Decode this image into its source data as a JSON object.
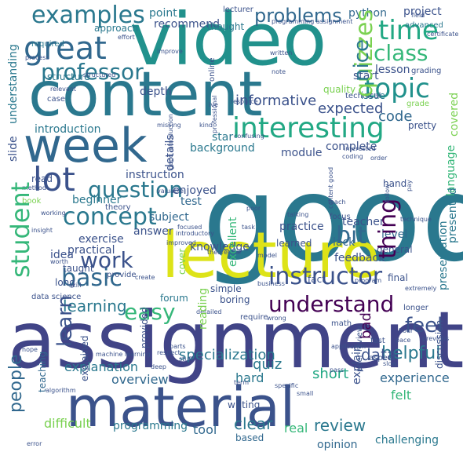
{
  "words": [
    {
      "text": "good",
      "color": "#2a788e",
      "vertical": false
    },
    {
      "text": "assignment",
      "color": "#414487",
      "vertical": false
    },
    {
      "text": "content",
      "color": "#2a788e",
      "vertical": false
    },
    {
      "text": "video",
      "color": "#21918c",
      "vertical": false
    },
    {
      "text": "lecture",
      "color": "#dde318",
      "vertical": false
    },
    {
      "text": "material",
      "color": "#3b528b",
      "vertical": false
    },
    {
      "text": "week",
      "color": "#31688e",
      "vertical": false
    },
    {
      "text": "interesting",
      "color": "#22a884",
      "vertical": false
    },
    {
      "text": "great",
      "color": "#31688e",
      "vertical": false
    },
    {
      "text": "lot",
      "color": "#3b528b",
      "vertical": false
    },
    {
      "text": "examples",
      "color": "#2a788e",
      "vertical": false
    },
    {
      "text": "time",
      "color": "#22a884",
      "vertical": false
    },
    {
      "text": "class",
      "color": "#35b779",
      "vertical": false
    },
    {
      "text": "topic",
      "color": "#21918c",
      "vertical": false
    },
    {
      "text": "professor",
      "color": "#2a788e",
      "vertical": false
    },
    {
      "text": "quizzes",
      "color": "#7ad151",
      "vertical": true
    },
    {
      "text": "nice",
      "color": "#2a788e",
      "vertical": true
    },
    {
      "text": "problems",
      "color": "#31688e",
      "vertical": false
    },
    {
      "text": "instructor",
      "color": "#3b528b",
      "vertical": false
    },
    {
      "text": "question",
      "color": "#2a788e",
      "vertical": false
    },
    {
      "text": "concept",
      "color": "#2a788e",
      "vertical": false
    },
    {
      "text": "basic",
      "color": "#31688e",
      "vertical": false
    },
    {
      "text": "work",
      "color": "#3b528b",
      "vertical": false
    },
    {
      "text": "student",
      "color": "#35b779",
      "vertical": true
    },
    {
      "text": "learning",
      "color": "#2a788e",
      "vertical": false
    },
    {
      "text": "bit",
      "color": "#31688e",
      "vertical": false
    },
    {
      "text": "thing",
      "color": "#440154",
      "vertical": true
    },
    {
      "text": "understand",
      "color": "#440154",
      "vertical": false
    },
    {
      "text": "easy",
      "color": "#35b779",
      "vertical": false
    },
    {
      "text": "learn",
      "color": "#3b528b",
      "vertical": true
    },
    {
      "text": "people",
      "color": "#31688e",
      "vertical": true
    },
    {
      "text": "feel",
      "color": "#3b528b",
      "vertical": false
    },
    {
      "text": "specialization",
      "color": "#2a788e",
      "vertical": false
    },
    {
      "text": "explanation",
      "color": "#2a788e",
      "vertical": false
    },
    {
      "text": "overview",
      "color": "#31688e",
      "vertical": false
    },
    {
      "text": "helpful",
      "color": "#2a788e",
      "vertical": false
    },
    {
      "text": "experience",
      "color": "#31688e",
      "vertical": false
    },
    {
      "text": "difficult",
      "color": "#7ad151",
      "vertical": false
    },
    {
      "text": "programming",
      "color": "#2a788e",
      "vertical": false
    },
    {
      "text": "tool",
      "color": "#31688e",
      "vertical": false
    },
    {
      "text": "clear",
      "color": "#2a788e",
      "vertical": false
    },
    {
      "text": "review",
      "color": "#2a788e",
      "vertical": false
    },
    {
      "text": "real",
      "color": "#35b779",
      "vertical": false
    },
    {
      "text": "opinion",
      "color": "#31688e",
      "vertical": false
    },
    {
      "text": "writing",
      "color": "#3b528b",
      "vertical": false
    },
    {
      "text": "hard",
      "color": "#2a788e",
      "vertical": false
    },
    {
      "text": "based",
      "color": "#31688e",
      "vertical": false
    },
    {
      "text": "felt",
      "color": "#35b779",
      "vertical": false
    },
    {
      "text": "short",
      "color": "#22a884",
      "vertical": false
    },
    {
      "text": "quiz",
      "color": "#2a788e",
      "vertical": false
    },
    {
      "text": "data",
      "color": "#3b528b",
      "vertical": false
    },
    {
      "text": "challenging",
      "color": "#2a788e",
      "vertical": false
    },
    {
      "text": "informative",
      "color": "#3b528b",
      "vertical": false
    },
    {
      "text": "expected",
      "color": "#3b528b",
      "vertical": false
    },
    {
      "text": "code",
      "color": "#31688e",
      "vertical": false
    },
    {
      "text": "introduction",
      "color": "#2a788e",
      "vertical": false
    },
    {
      "text": "module",
      "color": "#3b528b",
      "vertical": false
    },
    {
      "text": "complete",
      "color": "#3b528b",
      "vertical": false
    },
    {
      "text": "background",
      "color": "#2a788e",
      "vertical": false
    },
    {
      "text": "star",
      "color": "#2a788e",
      "vertical": false
    },
    {
      "text": "instruction",
      "color": "#3b528b",
      "vertical": false
    },
    {
      "text": "enjoyed",
      "color": "#3b528b",
      "vertical": false
    },
    {
      "text": "test",
      "color": "#31688e",
      "vertical": false
    },
    {
      "text": "beginner",
      "color": "#2a788e",
      "vertical": false
    },
    {
      "text": "subject",
      "color": "#31688e",
      "vertical": false
    },
    {
      "text": "answer",
      "color": "#3b528b",
      "vertical": false
    },
    {
      "text": "exercise",
      "color": "#3b528b",
      "vertical": false
    },
    {
      "text": "knowledge",
      "color": "#3b528b",
      "vertical": false
    },
    {
      "text": "practice",
      "color": "#3b528b",
      "vertical": false
    },
    {
      "text": "teacher",
      "color": "#3b528b",
      "vertical": false
    },
    {
      "text": "learned",
      "color": "#3b528b",
      "vertical": false
    },
    {
      "text": "lack",
      "color": "#31688e",
      "vertical": false
    },
    {
      "text": "feedback",
      "color": "#3b528b",
      "vertical": false
    },
    {
      "text": "general",
      "color": "#3b528b",
      "vertical": false
    },
    {
      "text": "level",
      "color": "#31688e",
      "vertical": false
    },
    {
      "text": "practical",
      "color": "#3b528b",
      "vertical": false
    },
    {
      "text": "idea",
      "color": "#3b528b",
      "vertical": false
    },
    {
      "text": "taught",
      "color": "#3b528b",
      "vertical": false
    },
    {
      "text": "long",
      "color": "#3b528b",
      "vertical": false
    },
    {
      "text": "simple",
      "color": "#3b528b",
      "vertical": false
    },
    {
      "text": "boring",
      "color": "#3b528b",
      "vertical": false
    },
    {
      "text": "fact",
      "color": "#3b528b",
      "vertical": false
    },
    {
      "text": "forum",
      "color": "#2a788e",
      "vertical": false
    },
    {
      "text": "point",
      "color": "#2a788e",
      "vertical": false
    },
    {
      "text": "recommend",
      "color": "#3b528b",
      "vertical": false
    },
    {
      "text": "thought",
      "color": "#2a788e",
      "vertical": false
    },
    {
      "text": "lecturer",
      "color": "#3b528b",
      "vertical": false
    },
    {
      "text": "python",
      "color": "#31688e",
      "vertical": false
    },
    {
      "text": "project",
      "color": "#3b528b",
      "vertical": false
    },
    {
      "text": "lesson",
      "color": "#3b528b",
      "vertical": false
    },
    {
      "text": "start",
      "color": "#3b528b",
      "vertical": false
    },
    {
      "text": "issue",
      "color": "#2a788e",
      "vertical": false
    },
    {
      "text": "depth",
      "color": "#3b528b",
      "vertical": false
    },
    {
      "text": "structure",
      "color": "#2a788e",
      "vertical": false
    },
    {
      "text": "approach",
      "color": "#2a788e",
      "vertical": false
    },
    {
      "text": "required",
      "color": "#2a788e",
      "vertical": false
    },
    {
      "text": "advanced",
      "color": "#2a788e",
      "vertical": false
    },
    {
      "text": "online",
      "color": "#3b528b",
      "vertical": true
    },
    {
      "text": "slide",
      "color": "#3b528b",
      "vertical": true
    },
    {
      "text": "understanding",
      "color": "#2a788e",
      "vertical": true
    },
    {
      "text": "details",
      "color": "#3b528b",
      "vertical": true
    },
    {
      "text": "presentation",
      "color": "#2a788e",
      "vertical": true
    },
    {
      "text": "language",
      "color": "#35b779",
      "vertical": true
    },
    {
      "text": "excellent",
      "color": "#35b779",
      "vertical": true
    },
    {
      "text": "reading",
      "color": "#7ad151",
      "vertical": true
    },
    {
      "text": "provided",
      "color": "#3b528b",
      "vertical": true
    },
    {
      "text": "teaching",
      "color": "#31688e",
      "vertical": true
    },
    {
      "text": "explained",
      "color": "#3b528b",
      "vertical": true
    },
    {
      "text": "discussion",
      "color": "#3b528b",
      "vertical": true
    },
    {
      "text": "explain",
      "color": "#3b528b",
      "vertical": true
    },
    {
      "text": "presented",
      "color": "#2a788e",
      "vertical": true
    },
    {
      "text": "covered",
      "color": "#7ad151",
      "vertical": true
    },
    {
      "text": "bad",
      "color": "#440154",
      "vertical": true
    },
    {
      "text": "quality",
      "color": "#7ad151",
      "vertical": false
    },
    {
      "text": "technical",
      "color": "#3b528b",
      "vertical": false
    },
    {
      "text": "grade",
      "color": "#7ad151",
      "vertical": false
    },
    {
      "text": "case",
      "color": "#3b528b",
      "vertical": false
    },
    {
      "text": "read",
      "color": "#3b528b",
      "vertical": false
    },
    {
      "text": "theory",
      "color": "#3b528b",
      "vertical": false
    },
    {
      "text": "hand",
      "color": "#3b528b",
      "vertical": false
    },
    {
      "text": "focus",
      "color": "#3b528b",
      "vertical": false
    },
    {
      "text": "final",
      "color": "#3b528b",
      "vertical": false
    },
    {
      "text": "cover",
      "color": "#7ad151",
      "vertical": true
    },
    {
      "text": "fast",
      "color": "#3b528b",
      "vertical": false
    },
    {
      "text": "book",
      "color": "#7ad151",
      "vertical": false
    },
    {
      "text": "pretty",
      "color": "#3b528b",
      "vertical": false
    },
    {
      "text": "data science",
      "color": "#3b528b",
      "vertical": false
    },
    {
      "text": "provide",
      "color": "#3b528b",
      "vertical": false
    },
    {
      "text": "require",
      "color": "#3b528b",
      "vertical": false
    },
    {
      "text": "math",
      "color": "#3b528b",
      "vertical": false
    },
    {
      "text": "certificate",
      "color": "#3b528b",
      "vertical": false
    },
    {
      "text": "field",
      "color": "#3b528b",
      "vertical": false
    },
    {
      "text": "effort",
      "color": "#3b528b",
      "vertical": false
    },
    {
      "text": "process",
      "color": "#3b528b",
      "vertical": false
    },
    {
      "text": "relevant",
      "color": "#3b528b",
      "vertical": false
    },
    {
      "text": "programming assignment",
      "color": "#3b528b",
      "vertical": false
    },
    {
      "text": "grading",
      "color": "#3b528b",
      "vertical": false
    },
    {
      "text": "improve",
      "color": "#3b528b",
      "vertical": false
    },
    {
      "text": "written",
      "color": "#3b528b",
      "vertical": false
    },
    {
      "text": "note",
      "color": "#3b528b",
      "vertical": false
    },
    {
      "text": "structured",
      "color": "#3b528b",
      "vertical": false
    },
    {
      "text": "resource",
      "color": "#3b528b",
      "vertical": false
    },
    {
      "text": "missing",
      "color": "#3b528b",
      "vertical": false
    },
    {
      "text": "kind",
      "color": "#3b528b",
      "vertical": false
    },
    {
      "text": "confusing",
      "color": "#3b528b",
      "vertical": false
    },
    {
      "text": "interested",
      "color": "#3b528b",
      "vertical": false
    },
    {
      "text": "order",
      "color": "#3b528b",
      "vertical": false
    },
    {
      "text": "method",
      "color": "#3b528b",
      "vertical": false
    },
    {
      "text": "valuable",
      "color": "#3b528b",
      "vertical": false
    },
    {
      "text": "poor",
      "color": "#3b528b",
      "vertical": false
    },
    {
      "text": "teach",
      "color": "#3b528b",
      "vertical": false
    },
    {
      "text": "talking",
      "color": "#3b528b",
      "vertical": false
    },
    {
      "text": "task",
      "color": "#3b528b",
      "vertical": false
    },
    {
      "text": "technique",
      "color": "#3b528b",
      "vertical": false
    },
    {
      "text": "insight",
      "color": "#3b528b",
      "vertical": false
    },
    {
      "text": "worth",
      "color": "#3b528b",
      "vertical": false
    },
    {
      "text": "model",
      "color": "#3b528b",
      "vertical": false
    },
    {
      "text": "theoretical",
      "color": "#3b528b",
      "vertical": false
    },
    {
      "text": "introductory",
      "color": "#3b528b",
      "vertical": false
    },
    {
      "text": "improved",
      "color": "#3b528b",
      "vertical": false
    },
    {
      "text": "create",
      "color": "#3b528b",
      "vertical": false
    },
    {
      "text": "program",
      "color": "#3b528b",
      "vertical": false
    },
    {
      "text": "business",
      "color": "#3b528b",
      "vertical": false
    },
    {
      "text": "extremely",
      "color": "#3b528b",
      "vertical": false
    },
    {
      "text": "detailed",
      "color": "#3b528b",
      "vertical": false
    },
    {
      "text": "wrong",
      "color": "#3b528b",
      "vertical": false
    },
    {
      "text": "longer",
      "color": "#3b528b",
      "vertical": false
    },
    {
      "text": "hope",
      "color": "#3b528b",
      "vertical": false
    },
    {
      "text": "parts",
      "color": "#3b528b",
      "vertical": false
    },
    {
      "text": "stuff",
      "color": "#3b528b",
      "vertical": false
    },
    {
      "text": "term",
      "color": "#3b528b",
      "vertical": false
    },
    {
      "text": "specific",
      "color": "#3b528b",
      "vertical": false
    },
    {
      "text": "small",
      "color": "#3b528b",
      "vertical": false
    },
    {
      "text": "aspect",
      "color": "#3b528b",
      "vertical": false
    },
    {
      "text": "slow",
      "color": "#3b528b",
      "vertical": false
    },
    {
      "text": "application",
      "color": "#3b528b",
      "vertical": false
    },
    {
      "text": "machine learning",
      "color": "#3b528b",
      "vertical": false
    },
    {
      "text": "algorithm",
      "color": "#3b528b",
      "vertical": false
    },
    {
      "text": "error",
      "color": "#3b528b",
      "vertical": false
    },
    {
      "text": "deep",
      "color": "#3b528b",
      "vertical": false
    },
    {
      "text": "respect",
      "color": "#3b528b",
      "vertical": false
    },
    {
      "text": "previous",
      "color": "#3b528b",
      "vertical": false
    },
    {
      "text": "peer review",
      "color": "#3b528b",
      "vertical": true
    },
    {
      "text": "hour",
      "color": "#3b528b",
      "vertical": false
    },
    {
      "text": "pace",
      "color": "#3b528b",
      "vertical": false
    },
    {
      "text": "pass",
      "color": "#3b528b",
      "vertical": false
    },
    {
      "text": "follow",
      "color": "#3b528b",
      "vertical": true
    },
    {
      "text": "pay",
      "color": "#3b528b",
      "vertical": true
    },
    {
      "text": "content good",
      "color": "#3b528b",
      "vertical": true
    },
    {
      "text": "good introduction",
      "color": "#3b528b",
      "vertical": true
    },
    {
      "text": "working",
      "color": "#3b528b",
      "vertical": false
    },
    {
      "text": "coding",
      "color": "#3b528b",
      "vertical": false
    },
    {
      "text": "professional",
      "color": "#3b528b",
      "vertical": true
    },
    {
      "text": "ive",
      "color": "#3b528b",
      "vertical": false
    },
    {
      "text": "focused",
      "color": "#3b528b",
      "vertical": false
    },
    {
      "text": "skill",
      "color": "#3b528b",
      "vertical": false
    }
  ]
}
